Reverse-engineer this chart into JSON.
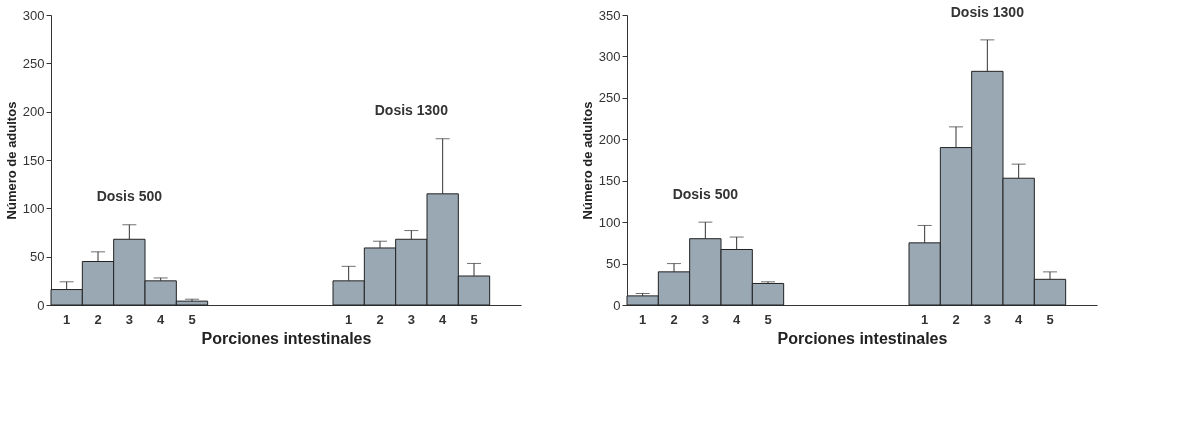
{
  "chart_data": [
    {
      "type": "bar",
      "xlabel": "Porciones intestinales",
      "ylabel": "Número de adultos",
      "categories": [
        "1",
        "2",
        "3",
        "4",
        "5",
        null,
        null,
        null,
        null,
        "1",
        "2",
        "3",
        "4",
        "5",
        null
      ],
      "series": [
        {
          "color": "#9aa8b4",
          "values": [
            16,
            45,
            68,
            25,
            4,
            null,
            null,
            null,
            null,
            25,
            59,
            68,
            115,
            30,
            null
          ],
          "errors": [
            8,
            10,
            15,
            3,
            2,
            null,
            null,
            null,
            null,
            15,
            7,
            9,
            57,
            13,
            null
          ]
        }
      ],
      "ylim": [
        0,
        300
      ],
      "yticks": [
        0,
        50,
        100,
        150,
        200,
        250,
        300
      ],
      "grid": false,
      "annotations": [
        "Dosis 500",
        "Dosis 1300"
      ]
    },
    {
      "type": "bar",
      "xlabel": "Porciones intestinales",
      "ylabel": "Número de adultos",
      "categories": [
        "1",
        "2",
        "3",
        "4",
        "5",
        null,
        null,
        null,
        null,
        "1",
        "2",
        "3",
        "4",
        "5",
        null
      ],
      "series": [
        {
          "color": "#9aa8b4",
          "values": [
            11,
            40,
            80,
            67,
            26,
            null,
            null,
            null,
            null,
            75,
            190,
            282,
            153,
            31,
            null
          ],
          "errors": [
            3,
            10,
            20,
            15,
            2,
            null,
            null,
            null,
            null,
            21,
            25,
            38,
            17,
            9,
            null
          ]
        }
      ],
      "ylim": [
        0,
        350
      ],
      "yticks": [
        0,
        50,
        100,
        150,
        200,
        250,
        300,
        350
      ],
      "grid": false,
      "annotations": [
        "Dosis 500",
        "Dosis 1300"
      ]
    }
  ]
}
